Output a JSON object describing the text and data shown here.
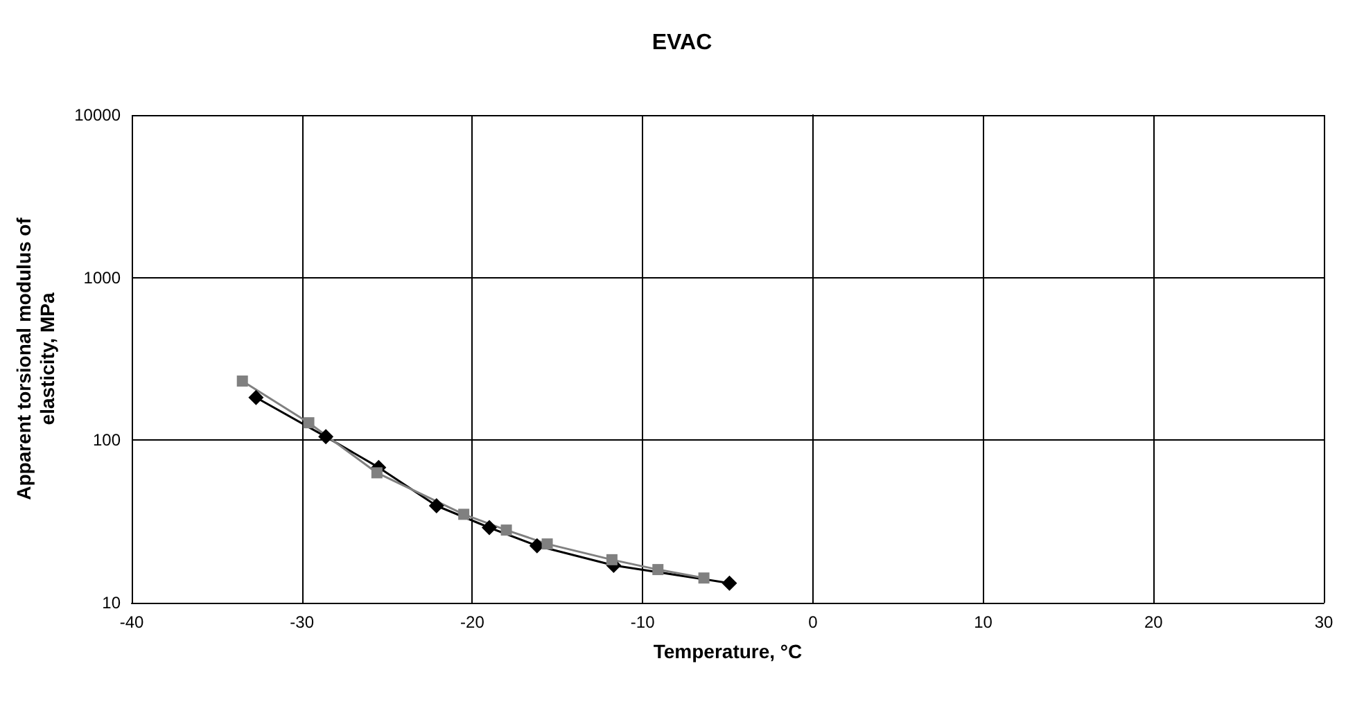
{
  "chart_data": {
    "type": "line",
    "title": "EVAC",
    "xlabel": "Temperature, °C",
    "ylabel": "Apparent torsional modulus of elasticity, MPa",
    "xlim": [
      -40,
      30
    ],
    "xticks": [
      -40,
      -30,
      -20,
      -10,
      0,
      10,
      20,
      30
    ],
    "ylim": [
      10,
      10000
    ],
    "yticks": [
      10,
      100,
      1000,
      10000
    ],
    "log": "y",
    "grid": true,
    "line_style": "solid",
    "series": [
      {
        "color": "#000000",
        "marker": "diamond",
        "x": [
          -32.7,
          -28.6,
          -25.5,
          -22.1,
          -19.0,
          -16.2,
          -11.7,
          -4.9
        ],
        "values": [
          183,
          105,
          68,
          39.5,
          29,
          22.4,
          17,
          13.2
        ]
      },
      {
        "color": "#808080",
        "marker": "square",
        "x": [
          -33.5,
          -29.6,
          -25.6,
          -20.5,
          -18.0,
          -15.6,
          -11.8,
          -9.1,
          -6.4
        ],
        "values": [
          231,
          128,
          63,
          35,
          28,
          23,
          18.4,
          16,
          14.2
        ]
      }
    ]
  }
}
